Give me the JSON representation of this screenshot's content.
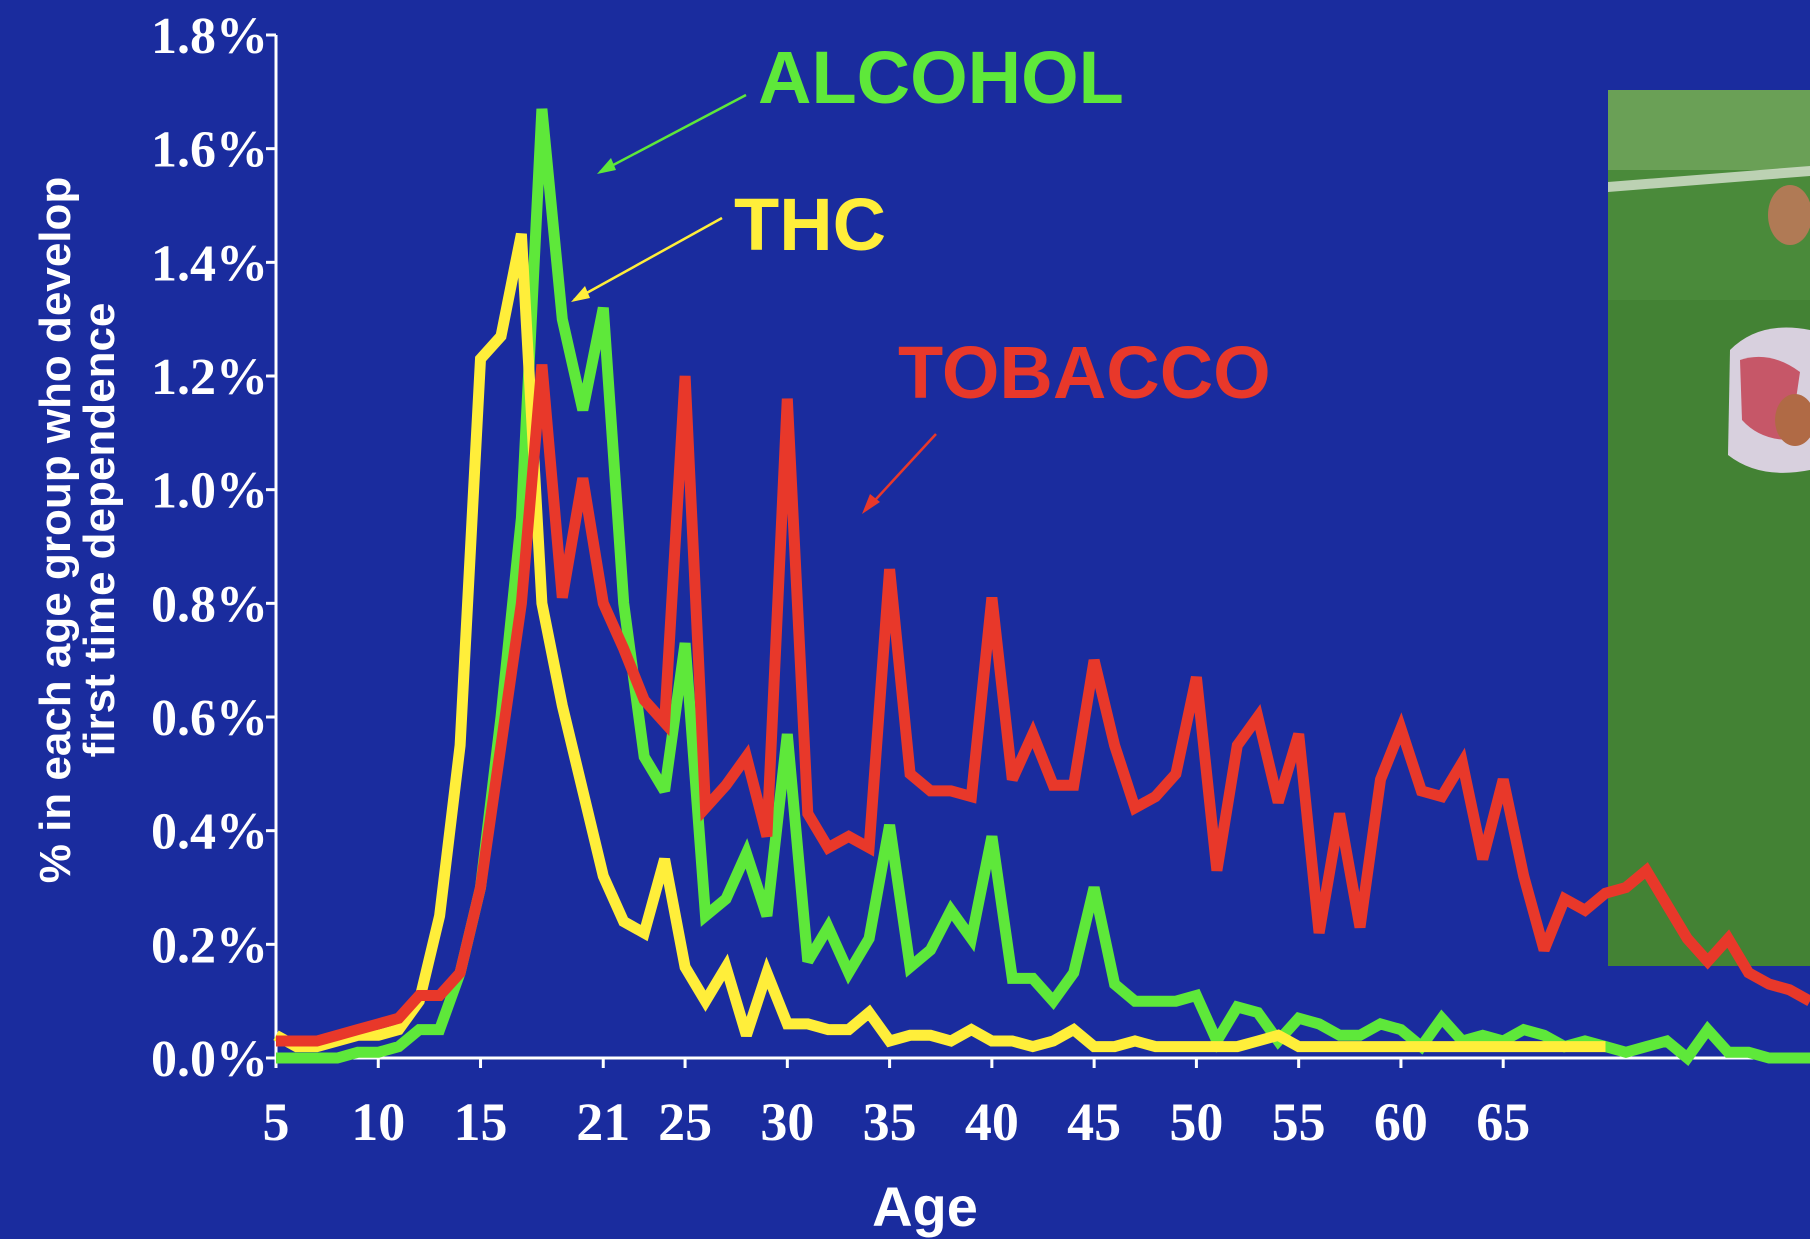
{
  "chart_data": {
    "type": "line",
    "xlabel": "Age",
    "ylabel_line1": "% in each age group who develop",
    "ylabel_line2": "first time dependence",
    "xlim": [
      5,
      80
    ],
    "ylim": [
      0,
      1.8
    ],
    "x_tick_labels": [
      "5",
      "10",
      "15",
      "21",
      "25",
      "30",
      "35",
      "40",
      "45",
      "50",
      "55",
      "60",
      "65"
    ],
    "x_tick_values": [
      5,
      10,
      15,
      21,
      25,
      30,
      35,
      40,
      45,
      50,
      55,
      60,
      65
    ],
    "y_tick_labels": [
      "0.0%",
      "0.2%",
      "0.4%",
      "0.6%",
      "0.8%",
      "1.0%",
      "1.2%",
      "1.4%",
      "1.6%",
      "1.8%"
    ],
    "y_tick_values": [
      0,
      0.2,
      0.4,
      0.6,
      0.8,
      1.0,
      1.2,
      1.4,
      1.6,
      1.8
    ],
    "series": [
      {
        "name": "ALCOHOL",
        "color": "#5ee83a",
        "x": [
          5,
          6,
          7,
          8,
          9,
          10,
          11,
          12,
          13,
          14,
          15,
          16,
          17,
          18,
          19,
          20,
          21,
          22,
          23,
          24,
          25,
          26,
          27,
          28,
          29,
          30,
          31,
          32,
          33,
          34,
          35,
          36,
          37,
          38,
          39,
          40,
          41,
          42,
          43,
          44,
          45,
          46,
          47,
          48,
          49,
          50,
          51,
          52,
          53,
          54,
          55,
          56,
          57,
          58,
          59,
          60,
          61,
          62,
          63,
          64,
          65,
          66,
          67,
          68,
          69,
          70,
          71,
          72,
          73,
          74,
          75,
          76,
          77,
          78,
          79,
          80
        ],
        "values": [
          0.0,
          0.0,
          0.0,
          0.0,
          0.01,
          0.01,
          0.02,
          0.05,
          0.05,
          0.15,
          0.3,
          0.6,
          0.95,
          1.67,
          1.3,
          1.14,
          1.32,
          0.8,
          0.53,
          0.47,
          0.73,
          0.25,
          0.28,
          0.36,
          0.25,
          0.57,
          0.17,
          0.23,
          0.15,
          0.21,
          0.41,
          0.16,
          0.19,
          0.26,
          0.21,
          0.39,
          0.14,
          0.14,
          0.1,
          0.15,
          0.3,
          0.13,
          0.1,
          0.1,
          0.1,
          0.11,
          0.03,
          0.09,
          0.08,
          0.03,
          0.07,
          0.06,
          0.04,
          0.04,
          0.06,
          0.05,
          0.02,
          0.07,
          0.03,
          0.04,
          0.03,
          0.05,
          0.04,
          0.02,
          0.03,
          0.02,
          0.01,
          0.02,
          0.03,
          0.0,
          0.05,
          0.01,
          0.01,
          0.0,
          0.0,
          0.0
        ]
      },
      {
        "name": "THC",
        "color": "#ffee3a",
        "x": [
          5,
          6,
          7,
          8,
          9,
          10,
          11,
          12,
          13,
          14,
          15,
          16,
          17,
          18,
          19,
          20,
          21,
          22,
          23,
          24,
          25,
          26,
          27,
          28,
          29,
          30,
          31,
          32,
          33,
          34,
          35,
          36,
          37,
          38,
          39,
          40,
          41,
          42,
          43,
          44,
          45,
          46,
          47,
          48,
          49,
          50,
          51,
          52,
          53,
          54,
          55,
          56,
          57,
          58,
          59,
          60,
          61,
          62,
          63,
          64,
          65,
          66,
          67,
          68,
          69,
          70
        ],
        "values": [
          0.04,
          0.02,
          0.02,
          0.03,
          0.04,
          0.04,
          0.05,
          0.1,
          0.25,
          0.55,
          1.23,
          1.27,
          1.45,
          0.8,
          0.62,
          0.47,
          0.32,
          0.24,
          0.22,
          0.35,
          0.16,
          0.1,
          0.16,
          0.04,
          0.15,
          0.06,
          0.06,
          0.05,
          0.05,
          0.08,
          0.03,
          0.04,
          0.04,
          0.03,
          0.05,
          0.03,
          0.03,
          0.02,
          0.03,
          0.05,
          0.02,
          0.02,
          0.03,
          0.02,
          0.02,
          0.02,
          0.02,
          0.02,
          0.03,
          0.04,
          0.02,
          0.02,
          0.02,
          0.02,
          0.02,
          0.02,
          0.02,
          0.02,
          0.02,
          0.02,
          0.02,
          0.02,
          0.02,
          0.02,
          0.02,
          0.02
        ]
      },
      {
        "name": "TOBACCO",
        "color": "#e8382a",
        "x": [
          5,
          6,
          7,
          8,
          9,
          10,
          11,
          12,
          13,
          14,
          15,
          16,
          17,
          18,
          19,
          20,
          21,
          22,
          23,
          24,
          25,
          26,
          27,
          28,
          29,
          30,
          31,
          32,
          33,
          34,
          35,
          36,
          37,
          38,
          39,
          40,
          41,
          42,
          43,
          44,
          45,
          46,
          47,
          48,
          49,
          50,
          51,
          52,
          53,
          54,
          55,
          56,
          57,
          58,
          59,
          60,
          61,
          62,
          63,
          64,
          65,
          66,
          67,
          68,
          69,
          70,
          71,
          72,
          73,
          74,
          75,
          76,
          77,
          78,
          79,
          80
        ],
        "values": [
          0.03,
          0.03,
          0.03,
          0.04,
          0.05,
          0.06,
          0.07,
          0.11,
          0.11,
          0.15,
          0.3,
          0.55,
          0.8,
          1.22,
          0.81,
          1.02,
          0.8,
          0.72,
          0.63,
          0.59,
          1.2,
          0.44,
          0.48,
          0.53,
          0.39,
          1.16,
          0.43,
          0.37,
          0.39,
          0.37,
          0.86,
          0.5,
          0.47,
          0.47,
          0.46,
          0.81,
          0.49,
          0.57,
          0.48,
          0.48,
          0.7,
          0.55,
          0.44,
          0.46,
          0.5,
          0.67,
          0.33,
          0.55,
          0.6,
          0.45,
          0.57,
          0.22,
          0.43,
          0.23,
          0.49,
          0.58,
          0.47,
          0.46,
          0.52,
          0.35,
          0.49,
          0.32,
          0.19,
          0.28,
          0.26,
          0.29,
          0.3,
          0.33,
          0.27,
          0.21,
          0.17,
          0.21,
          0.15,
          0.13,
          0.12,
          0.1
        ]
      }
    ],
    "series_labels": [
      {
        "text": "ALCOHOL",
        "color": "#5ee83a"
      },
      {
        "text": "THC",
        "color": "#ffee3a"
      },
      {
        "text": "TOBACCO",
        "color": "#e8382a"
      }
    ],
    "grid": false,
    "background": "#1a2c9e"
  }
}
